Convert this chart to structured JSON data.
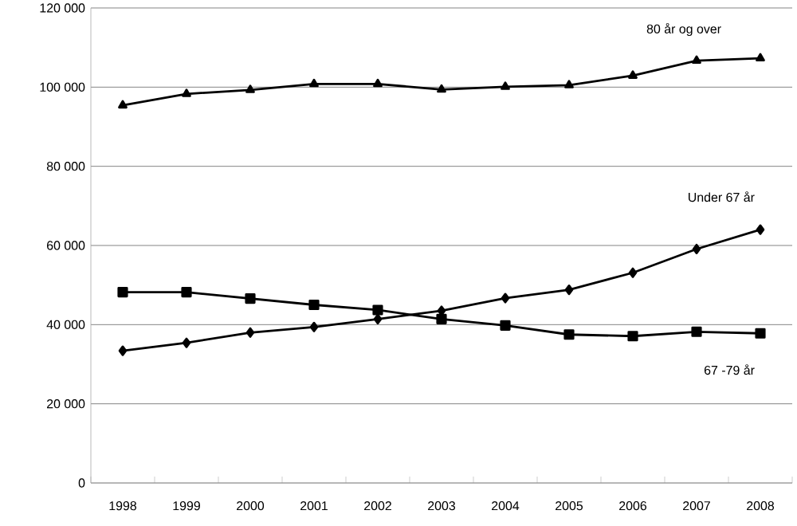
{
  "chart_data": {
    "type": "line",
    "categories": [
      "1998",
      "1999",
      "2000",
      "2001",
      "2002",
      "2003",
      "2004",
      "2005",
      "2006",
      "2007",
      "2008"
    ],
    "series": [
      {
        "name": "80 år og over",
        "color": "#000000",
        "marker": "triangle",
        "values": [
          95400,
          98300,
          99300,
          100800,
          100800,
          99400,
          100100,
          100500,
          102900,
          106700,
          107300
        ]
      },
      {
        "name": "Under 67 år",
        "color": "#000000",
        "marker": "diamond",
        "values": [
          33400,
          35400,
          38000,
          39400,
          41400,
          43500,
          46700,
          48800,
          53100,
          59100,
          64000
        ]
      },
      {
        "name": "67 -79 år",
        "color": "#000000",
        "marker": "square",
        "values": [
          48200,
          48200,
          46600,
          45000,
          43700,
          41400,
          39800,
          37500,
          37100,
          38200,
          37800
        ]
      }
    ],
    "ylim": [
      0,
      120000
    ],
    "yticks": [
      {
        "value": 0,
        "label": "0"
      },
      {
        "value": 20000,
        "label": "20 000"
      },
      {
        "value": 40000,
        "label": "40 000"
      },
      {
        "value": 60000,
        "label": "60 000"
      },
      {
        "value": 80000,
        "label": "80 000"
      },
      {
        "value": 100000,
        "label": "100 000"
      },
      {
        "value": 120000,
        "label": "120 000"
      }
    ],
    "grid": "y",
    "legend": false,
    "line_style": "solid"
  }
}
